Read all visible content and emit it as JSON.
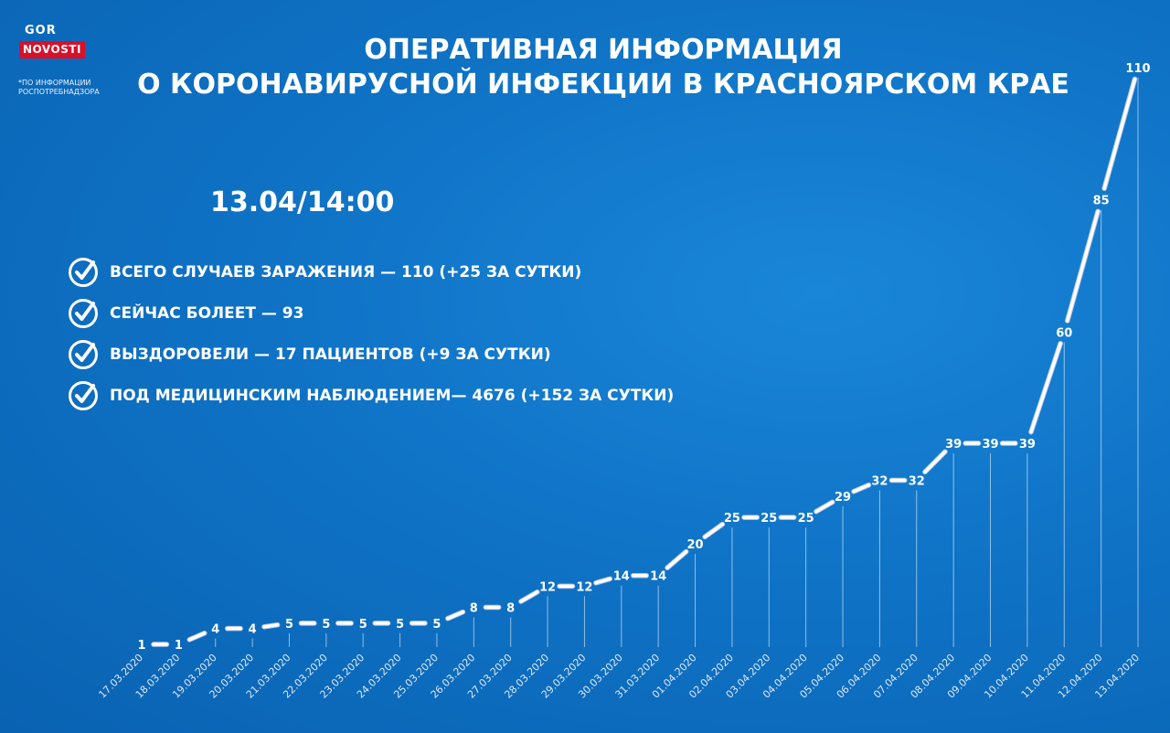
{
  "logo": {
    "line1": "GOR",
    "line2": "NOVOSTI"
  },
  "source_note": "*по информации Роспотребнадзора",
  "title": {
    "line1": "ОПЕРАТИВНАЯ ИНФОРМАЦИЯ",
    "line2": "О КОРОНАВИРУСНОЙ ИНФЕКЦИИ В КРАСНОЯРСКОМ КРАЕ"
  },
  "timestamp": "13.04/14:00",
  "stats": [
    {
      "text": "ВСЕГО СЛУЧАЕВ ЗАРАЖЕНИЯ — 110 (+25 ЗА СУТКИ)"
    },
    {
      "text": "СЕЙЧАС БОЛЕЕТ — 93"
    },
    {
      "text": "ВЫЗДОРОВЕЛИ — 17 ПАЦИЕНТОВ (+9 ЗА СУТКИ)"
    },
    {
      "text": "ПОД МЕДИЦИНСКИМ НАБЛЮДЕНИЕМ— 4676 (+152 ЗА СУТКИ)"
    }
  ],
  "colors": {
    "background": "#0f73c6",
    "line": "#ffffff",
    "accent": "#d8102a",
    "icon": "check-circle-icon"
  },
  "chart_data": {
    "type": "line",
    "x": [
      "17.03.2020",
      "18.03.2020",
      "19.03.2020",
      "20.03.2020",
      "21.03.2020",
      "22.03.2020",
      "23.03.2020",
      "24.03.2020",
      "25.03.2020",
      "26.03.2020",
      "27.03.2020",
      "28.03.2020",
      "29.03.2020",
      "30.03.2020",
      "31.03.2020",
      "01.04.2020",
      "02.04.2020",
      "03.04.2020",
      "04.04.2020",
      "05.04.2020",
      "06.04.2020",
      "07.04.2020",
      "08.04.2020",
      "09.04.2020",
      "10.04.2020",
      "11.04.2020",
      "12.04.2020",
      "13.04.2020"
    ],
    "values": [
      1,
      1,
      4,
      4,
      5,
      5,
      5,
      5,
      5,
      8,
      8,
      12,
      12,
      14,
      14,
      20,
      25,
      25,
      25,
      29,
      32,
      32,
      39,
      39,
      39,
      60,
      85,
      110
    ],
    "ylim": [
      0,
      110
    ],
    "grid": false,
    "legend": "none",
    "title": "",
    "xlabel": "",
    "ylabel": ""
  }
}
